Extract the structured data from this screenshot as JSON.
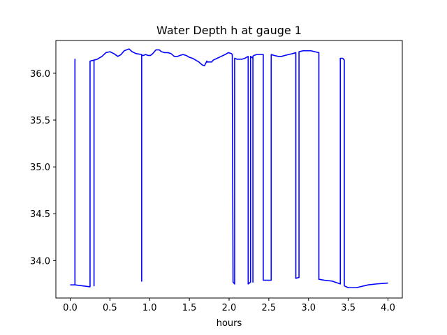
{
  "chart_data": {
    "type": "line",
    "title": "Water Depth h at gauge 1",
    "xlabel": "hours",
    "ylabel": "",
    "xlim": [
      -0.18,
      4.18
    ],
    "ylim": [
      33.6,
      36.35
    ],
    "xticks": [
      0.0,
      0.5,
      1.0,
      1.5,
      2.0,
      2.5,
      3.0,
      3.5,
      4.0
    ],
    "xtick_labels": [
      "0.0",
      "0.5",
      "1.0",
      "1.5",
      "2.0",
      "2.5",
      "3.0",
      "3.5",
      "4.0"
    ],
    "yticks": [
      34.0,
      34.5,
      35.0,
      35.5,
      36.0
    ],
    "ytick_labels": [
      "34.0",
      "34.5",
      "35.0",
      "35.5",
      "36.0"
    ],
    "grid": false,
    "series": [
      {
        "color": "#0000ff",
        "x": [
          0.0,
          0.06,
          0.06,
          0.06,
          0.25,
          0.25,
          0.3,
          0.3,
          0.3,
          0.34,
          0.4,
          0.45,
          0.5,
          0.55,
          0.6,
          0.64,
          0.68,
          0.74,
          0.78,
          0.83,
          0.9,
          0.9,
          0.9,
          0.92,
          0.95,
          0.98,
          1.01,
          1.04,
          1.08,
          1.12,
          1.15,
          1.19,
          1.23,
          1.27,
          1.31,
          1.35,
          1.38,
          1.42,
          1.46,
          1.5,
          1.54,
          1.58,
          1.62,
          1.66,
          1.69,
          1.72,
          1.72,
          1.78,
          1.8,
          1.85,
          1.9,
          1.95,
          1.99,
          2.03,
          2.04,
          2.05,
          2.07,
          2.07,
          2.1,
          2.13,
          2.16,
          2.2,
          2.24,
          2.24,
          2.27,
          2.27,
          2.3,
          2.3,
          2.3,
          2.31,
          2.35,
          2.4,
          2.43,
          2.43,
          2.53,
          2.53,
          2.57,
          2.62,
          2.66,
          2.7,
          2.75,
          2.8,
          2.84,
          2.84,
          2.88,
          2.88,
          2.93,
          2.98,
          3.03,
          3.08,
          3.13,
          3.13,
          3.2,
          3.3,
          3.4,
          3.4,
          3.43,
          3.45,
          3.45,
          3.5,
          3.55,
          3.6,
          3.65,
          3.7,
          3.75,
          3.85,
          4.0
        ],
        "y": [
          33.74,
          33.74,
          36.15,
          33.74,
          33.72,
          36.13,
          36.14,
          33.73,
          36.14,
          36.15,
          36.18,
          36.22,
          36.23,
          36.21,
          36.18,
          36.2,
          36.24,
          36.26,
          36.23,
          36.21,
          36.2,
          33.78,
          36.19,
          36.19,
          36.2,
          36.19,
          36.19,
          36.21,
          36.25,
          36.25,
          36.23,
          36.22,
          36.22,
          36.21,
          36.18,
          36.18,
          36.19,
          36.2,
          36.19,
          36.17,
          36.16,
          36.14,
          36.12,
          36.09,
          36.08,
          36.13,
          36.12,
          36.12,
          36.14,
          36.16,
          36.18,
          36.2,
          36.22,
          36.21,
          36.2,
          33.77,
          33.75,
          36.16,
          36.15,
          36.15,
          36.15,
          36.16,
          36.18,
          33.75,
          33.77,
          36.18,
          36.16,
          33.77,
          36.18,
          36.19,
          36.2,
          36.2,
          36.2,
          33.79,
          33.79,
          36.2,
          36.19,
          36.18,
          36.18,
          36.19,
          36.2,
          36.21,
          36.22,
          33.81,
          33.82,
          36.23,
          36.24,
          36.24,
          36.24,
          36.23,
          36.22,
          33.8,
          33.79,
          33.78,
          33.75,
          36.16,
          36.16,
          36.14,
          33.73,
          33.71,
          33.71,
          33.71,
          33.72,
          33.73,
          33.74,
          33.75,
          33.76
        ]
      }
    ]
  }
}
